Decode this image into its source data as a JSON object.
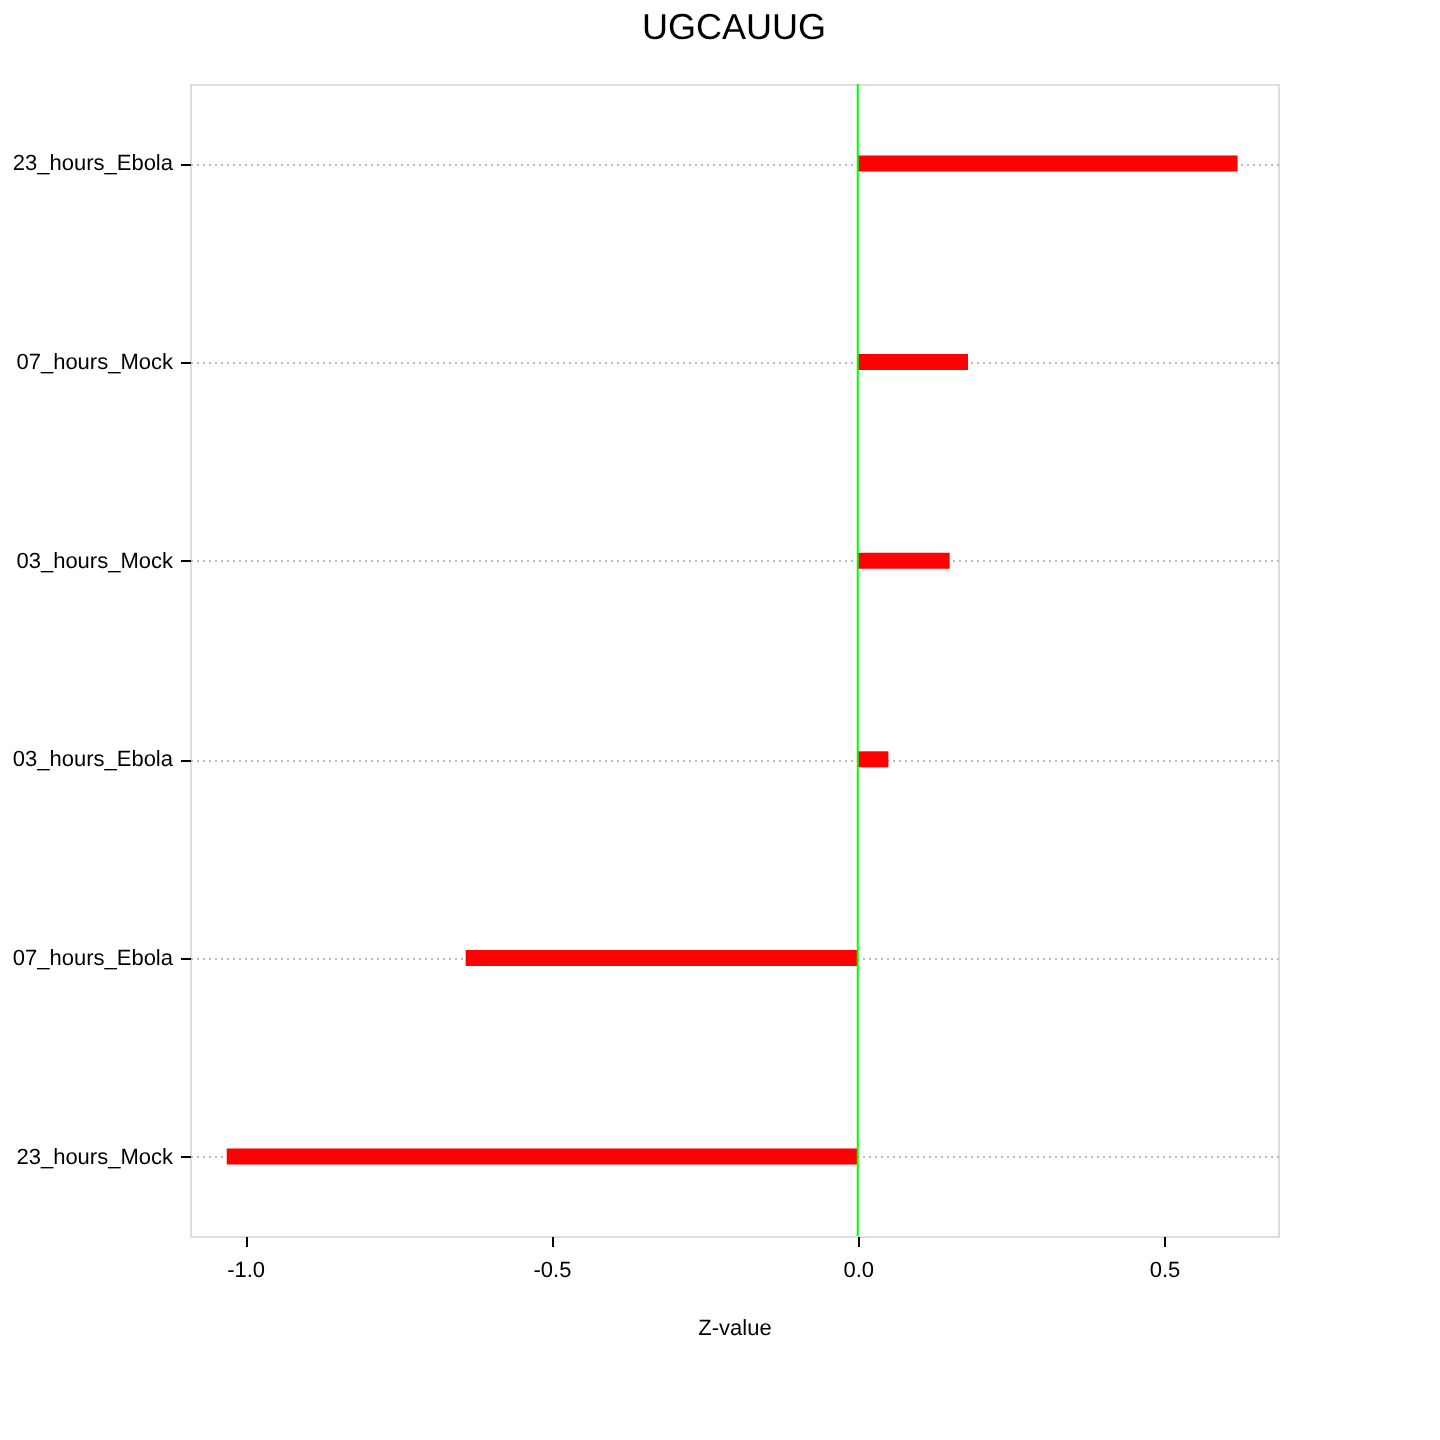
{
  "chart_data": {
    "type": "bar",
    "orientation": "horizontal",
    "title": "UGCAUUG",
    "xlabel": "Z-value",
    "categories": [
      "23_hours_Ebola",
      "07_hours_Mock",
      "03_hours_Mock",
      "03_hours_Ebola",
      "07_hours_Ebola",
      "23_hours_Mock"
    ],
    "values": [
      0.62,
      0.18,
      0.15,
      0.05,
      -0.64,
      -1.03
    ],
    "color": "#ff0000",
    "xlim": [
      -1.09,
      0.686
    ],
    "xticks": [
      {
        "value": -1.0,
        "label": "-1.0"
      },
      {
        "value": -0.5,
        "label": "-0.5"
      },
      {
        "value": 0.0,
        "label": "0.0"
      },
      {
        "value": 0.5,
        "label": "0.5"
      }
    ],
    "grid": "y",
    "ref_lines": [
      {
        "axis": "x",
        "value": 0,
        "color": "#00ff00"
      }
    ]
  }
}
